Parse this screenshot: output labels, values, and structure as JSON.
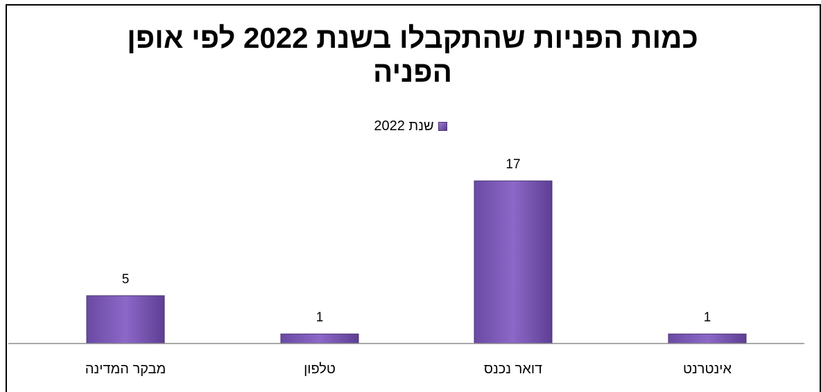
{
  "chart_data": {
    "type": "bar",
    "title": "כמות הפניות שהתקבלו בשנת 2022 לפי אופן הפניה",
    "categories": [
      "מבקר המדינה",
      "טלפון",
      "דואר נכנס",
      "אינטרנט"
    ],
    "series": [
      {
        "name": "שנת 2022",
        "values": [
          5,
          1,
          17,
          1
        ],
        "color": "#7b59b5"
      }
    ],
    "data_labels": [
      "5",
      "1",
      "17",
      "1"
    ],
    "legend_position": "top",
    "grid": false,
    "ylim": [
      0,
      19.4
    ]
  }
}
